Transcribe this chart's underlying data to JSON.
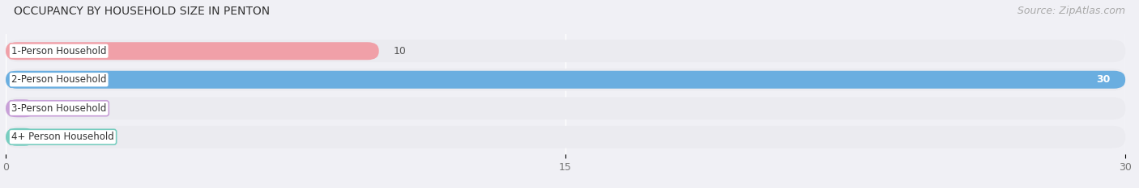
{
  "title": "OCCUPANCY BY HOUSEHOLD SIZE IN PENTON",
  "source": "Source: ZipAtlas.com",
  "categories": [
    "1-Person Household",
    "2-Person Household",
    "3-Person Household",
    "4+ Person Household"
  ],
  "values": [
    10,
    30,
    0,
    0
  ],
  "bar_colors": [
    "#f0a0a8",
    "#6aaee0",
    "#c8a0d8",
    "#78cdc0"
  ],
  "bar_bg_color": "#ebebf0",
  "xlim": [
    0,
    30
  ],
  "xticks": [
    0,
    15,
    30
  ],
  "title_fontsize": 10,
  "source_fontsize": 9,
  "tick_fontsize": 9,
  "bar_label_fontsize": 9,
  "figsize": [
    14.06,
    2.33
  ],
  "dpi": 100
}
